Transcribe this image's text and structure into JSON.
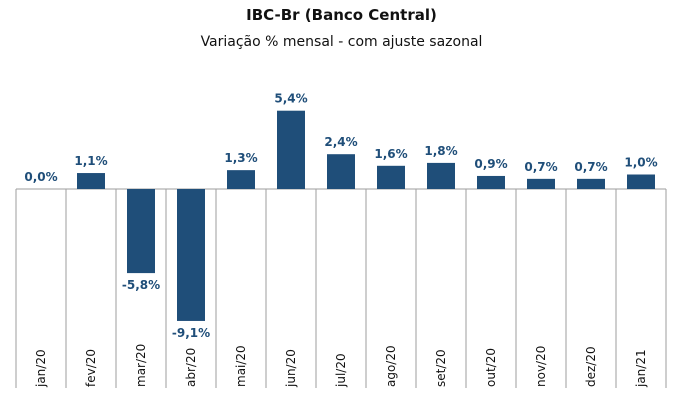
{
  "chart_data": {
    "type": "bar",
    "title": "IBC-Br (Banco Central)",
    "subtitle": "Variação % mensal - com ajuste sazonal",
    "categories": [
      "jan/20",
      "fev/20",
      "mar/20",
      "abr/20",
      "mai/20",
      "jun/20",
      "jul/20",
      "ago/20",
      "set/20",
      "out/20",
      "nov/20",
      "dez/20",
      "jan/21"
    ],
    "values": [
      0.0,
      1.1,
      -5.8,
      -9.1,
      1.3,
      5.4,
      2.4,
      1.6,
      1.8,
      0.9,
      0.7,
      0.7,
      1.0
    ],
    "data_labels": [
      "0,0%",
      "1,1%",
      "-5,8%",
      "-9,1%",
      "1,3%",
      "5,4%",
      "2,4%",
      "1,6%",
      "1,8%",
      "0,9%",
      "0,7%",
      "0,7%",
      "1,0%"
    ],
    "xlabel": "",
    "ylabel": "",
    "ylim": [
      -10,
      6
    ],
    "grid": false,
    "legend": false,
    "colors": {
      "bar": "#1F4E79",
      "label": "#1F4E79",
      "axis": "#9e9e9e"
    }
  }
}
